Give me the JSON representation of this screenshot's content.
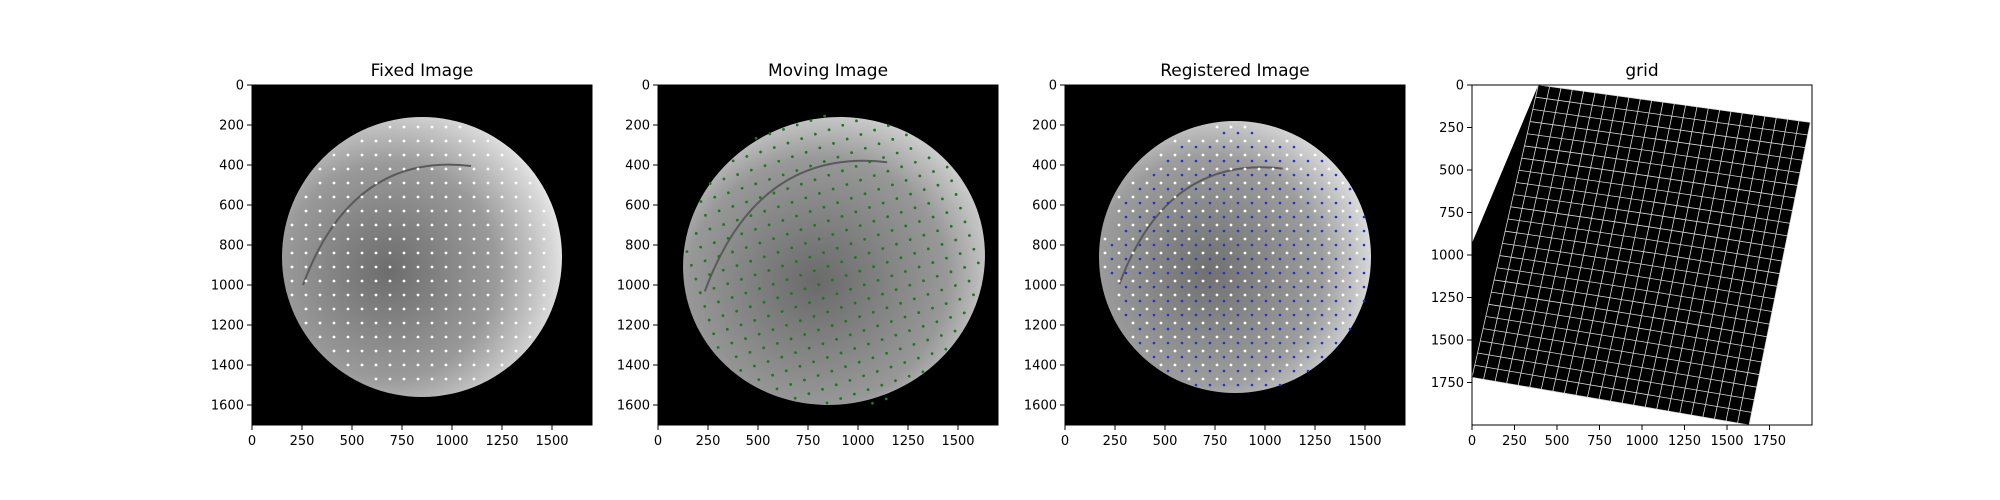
{
  "chart_data": [
    {
      "type": "image",
      "title": "Fixed Image",
      "xlim": [
        0,
        1700
      ],
      "ylim": [
        1700,
        0
      ],
      "xticks": [
        "0",
        "250",
        "500",
        "750",
        "1000",
        "1250",
        "1500"
      ],
      "yticks": [
        "0",
        "200",
        "400",
        "600",
        "800",
        "1000",
        "1200",
        "1400",
        "1600"
      ],
      "xtick_values": [
        0,
        250,
        500,
        750,
        1000,
        1250,
        1500
      ],
      "ytick_values": [
        0,
        200,
        400,
        600,
        800,
        1000,
        1200,
        1400,
        1600
      ],
      "disc": {
        "cx": 850,
        "cy": 860,
        "r": 700
      },
      "points": {
        "color": "#ffffff",
        "x0": 200,
        "y0": 210,
        "spacing": 70,
        "angle": 0
      }
    },
    {
      "type": "image",
      "title": "Moving Image",
      "xlim": [
        0,
        1700
      ],
      "ylim": [
        1700,
        0
      ],
      "xticks": [
        "0",
        "250",
        "500",
        "750",
        "1000",
        "1250",
        "1500"
      ],
      "yticks": [
        "0",
        "200",
        "400",
        "600",
        "800",
        "1000",
        "1200",
        "1400",
        "1600"
      ],
      "xtick_values": [
        0,
        250,
        500,
        750,
        1000,
        1250,
        1500
      ],
      "ytick_values": [
        0,
        200,
        400,
        600,
        800,
        1000,
        1200,
        1400,
        1600
      ],
      "disc": {
        "cx": 880,
        "cy": 880,
        "r": 760
      },
      "points": {
        "color": "#1a7a1a",
        "x0": 150,
        "y0": 150,
        "spacing": 72,
        "angle": -18
      }
    },
    {
      "type": "image",
      "title": "Registered Image",
      "xlim": [
        0,
        1700
      ],
      "ylim": [
        1700,
        0
      ],
      "xticks": [
        "0",
        "250",
        "500",
        "750",
        "1000",
        "1250",
        "1500"
      ],
      "yticks": [
        "0",
        "200",
        "400",
        "600",
        "800",
        "1000",
        "1200",
        "1400",
        "1600"
      ],
      "xtick_values": [
        0,
        250,
        500,
        750,
        1000,
        1250,
        1500
      ],
      "ytick_values": [
        0,
        200,
        400,
        600,
        800,
        1000,
        1200,
        1400,
        1600
      ],
      "disc": {
        "cx": 850,
        "cy": 860,
        "r": 680
      },
      "points": {
        "color": "#ffffff",
        "color2": "#2233cc",
        "x0": 200,
        "y0": 210,
        "spacing": 70,
        "angle": 0
      }
    },
    {
      "type": "grid",
      "title": "grid",
      "xlim": [
        0,
        2000
      ],
      "ylim": [
        2000,
        0
      ],
      "xticks": [
        "0",
        "250",
        "500",
        "750",
        "1000",
        "1250",
        "1500",
        "1750"
      ],
      "yticks": [
        "0",
        "250",
        "500",
        "750",
        "1000",
        "1250",
        "1500",
        "1750"
      ],
      "xtick_values": [
        0,
        250,
        500,
        750,
        1000,
        1250,
        1500,
        1750
      ],
      "ytick_values": [
        0,
        250,
        500,
        750,
        1000,
        1250,
        1500,
        1750
      ],
      "corners": [
        [
          390,
          0
        ],
        [
          1990,
          220
        ],
        [
          1630,
          2000
        ],
        [
          0,
          1720
        ],
        [
          0,
          930
        ]
      ]
    }
  ]
}
